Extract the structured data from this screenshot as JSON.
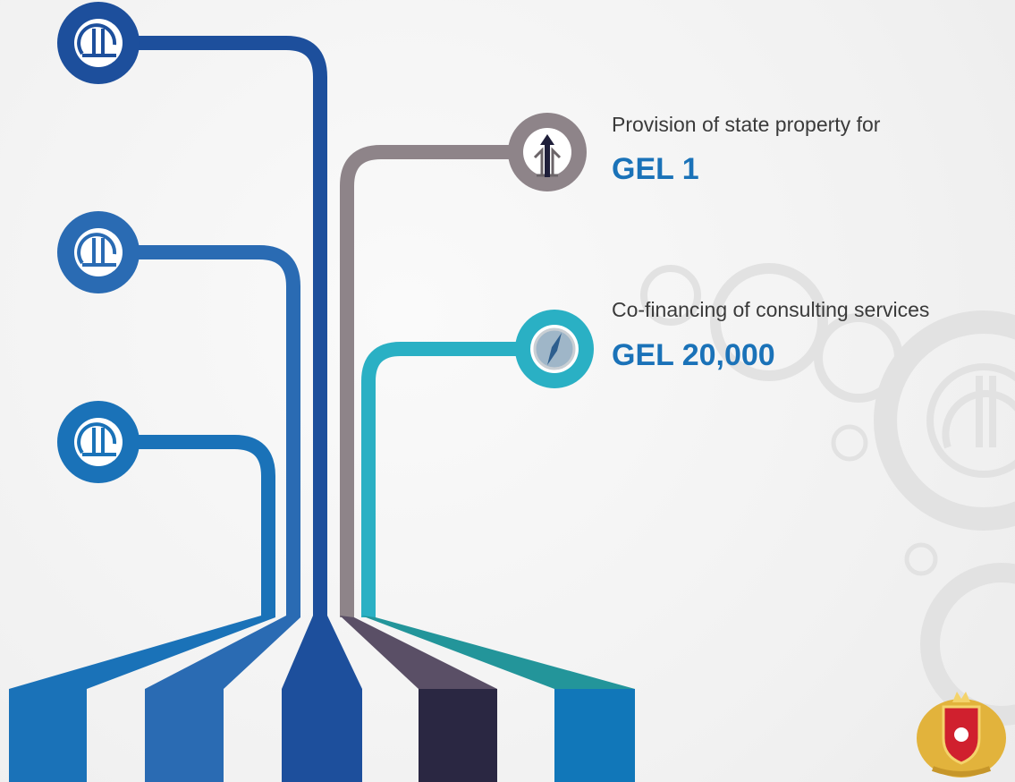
{
  "items": [
    {
      "text": "Provision of state property for",
      "amount": "GEL 1"
    },
    {
      "text": "Co-financing of consulting services",
      "amount": "GEL 20,000"
    }
  ]
}
